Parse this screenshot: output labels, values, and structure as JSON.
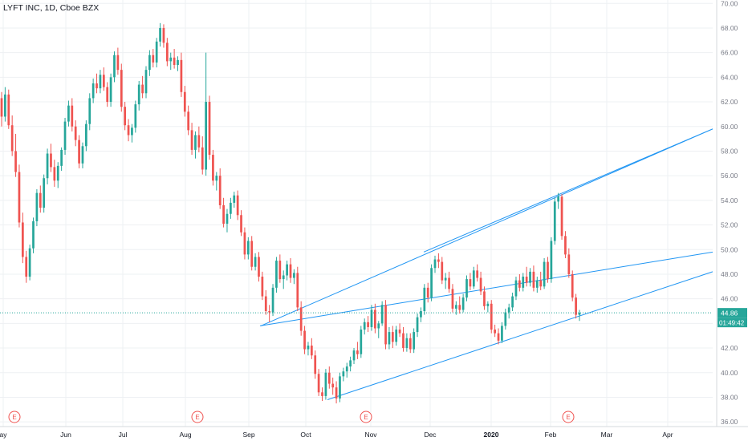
{
  "header": {
    "title": "LYFT INC, 1D, Cboe BZX"
  },
  "price_scale": {
    "last_price": "44.86",
    "countdown": "01:49:42",
    "ticks": [
      "36.00",
      "38.00",
      "40.00",
      "42.00",
      "44.00",
      "46.00",
      "48.00",
      "50.00",
      "52.00",
      "54.00",
      "56.00",
      "58.00",
      "60.00",
      "62.00",
      "64.00",
      "66.00",
      "68.00",
      "70.00"
    ]
  },
  "time_scale": {
    "labels": [
      "ay",
      "Jun",
      "Jul",
      "Aug",
      "Sep",
      "Oct",
      "Nov",
      "Dec",
      "2020",
      "Feb",
      "Mar",
      "Apr"
    ]
  },
  "earnings_markers": [
    "E",
    "E",
    "E",
    "E"
  ],
  "colors": {
    "up": "#26a69a",
    "down": "#ef5350",
    "trendline": "#2196f3",
    "grid": "#eef0f3",
    "price_line": "#26a69a"
  },
  "chart_data": {
    "type": "candlestick",
    "title": "LYFT INC, 1D, Cboe BZX",
    "ylim": [
      35.2,
      70.4
    ],
    "y_axis_side": "right",
    "grid": true,
    "last_price": 44.86,
    "x_labels": [
      "ay",
      "Jun",
      "Jul",
      "Aug",
      "Sep",
      "Oct",
      "Nov",
      "Dec",
      "2020",
      "Feb",
      "Mar",
      "Apr"
    ],
    "candles": [
      [
        62.3,
        62.8,
        60.0,
        60.8
      ],
      [
        60.8,
        63.2,
        60.4,
        62.6
      ],
      [
        62.6,
        63.0,
        59.8,
        60.1
      ],
      [
        60.1,
        60.9,
        57.6,
        58.0
      ],
      [
        58.0,
        59.4,
        55.9,
        56.3
      ],
      [
        56.3,
        56.9,
        51.8,
        52.2
      ],
      [
        52.2,
        53.0,
        48.9,
        49.4
      ],
      [
        49.4,
        49.9,
        47.3,
        47.8
      ],
      [
        47.8,
        50.4,
        47.5,
        50.1
      ],
      [
        50.1,
        52.6,
        49.7,
        52.3
      ],
      [
        52.3,
        54.9,
        51.9,
        54.6
      ],
      [
        54.6,
        55.2,
        53.0,
        53.4
      ],
      [
        53.4,
        56.1,
        53.0,
        55.8
      ],
      [
        55.8,
        58.2,
        55.3,
        57.8
      ],
      [
        57.8,
        58.6,
        56.3,
        56.7
      ],
      [
        56.7,
        57.3,
        55.1,
        55.6
      ],
      [
        55.6,
        57.1,
        55.0,
        56.8
      ],
      [
        56.8,
        58.3,
        56.4,
        58.1
      ],
      [
        58.1,
        60.7,
        57.7,
        60.4
      ],
      [
        60.4,
        62.1,
        60.0,
        61.7
      ],
      [
        61.7,
        62.3,
        59.6,
        60.0
      ],
      [
        60.0,
        60.5,
        58.4,
        58.9
      ],
      [
        58.9,
        59.3,
        56.6,
        57.0
      ],
      [
        57.0,
        58.7,
        56.6,
        58.4
      ],
      [
        58.4,
        60.5,
        58.0,
        60.2
      ],
      [
        60.2,
        62.7,
        59.7,
        62.3
      ],
      [
        62.3,
        63.9,
        61.9,
        63.5
      ],
      [
        63.5,
        64.3,
        62.7,
        63.1
      ],
      [
        63.1,
        64.6,
        62.7,
        64.2
      ],
      [
        64.2,
        64.8,
        62.9,
        63.2
      ],
      [
        63.2,
        63.6,
        61.6,
        62.0
      ],
      [
        62.0,
        64.3,
        61.6,
        64.0
      ],
      [
        64.0,
        66.1,
        63.6,
        65.8
      ],
      [
        65.8,
        66.4,
        64.2,
        64.6
      ],
      [
        64.6,
        65.1,
        61.2,
        61.6
      ],
      [
        61.6,
        62.0,
        59.7,
        60.1
      ],
      [
        60.1,
        60.6,
        58.8,
        59.3
      ],
      [
        59.3,
        60.2,
        58.7,
        59.9
      ],
      [
        59.9,
        62.1,
        59.5,
        61.8
      ],
      [
        61.8,
        63.7,
        61.3,
        63.4
      ],
      [
        63.4,
        64.1,
        62.3,
        62.7
      ],
      [
        62.7,
        64.9,
        62.3,
        64.6
      ],
      [
        64.6,
        66.2,
        64.1,
        65.8
      ],
      [
        65.8,
        66.3,
        64.8,
        65.2
      ],
      [
        65.2,
        67.2,
        64.8,
        66.9
      ],
      [
        66.9,
        68.4,
        66.5,
        68.0
      ],
      [
        68.0,
        68.3,
        66.4,
        66.8
      ],
      [
        66.8,
        67.2,
        64.9,
        65.3
      ],
      [
        65.3,
        66.0,
        64.6,
        65.6
      ],
      [
        65.6,
        66.3,
        64.7,
        65.0
      ],
      [
        65.0,
        65.7,
        64.5,
        65.4
      ],
      [
        65.4,
        66.0,
        62.4,
        62.8
      ],
      [
        62.8,
        63.3,
        60.8,
        61.2
      ],
      [
        61.2,
        61.7,
        59.3,
        59.7
      ],
      [
        59.7,
        60.3,
        57.7,
        58.1
      ],
      [
        58.1,
        59.6,
        57.4,
        59.3
      ],
      [
        59.3,
        60.0,
        57.9,
        58.3
      ],
      [
        58.3,
        59.2,
        56.1,
        56.5
      ],
      [
        56.5,
        66.0,
        56.0,
        62.0
      ],
      [
        62.0,
        62.5,
        57.3,
        57.7
      ],
      [
        57.7,
        58.1,
        55.2,
        55.6
      ],
      [
        55.6,
        56.3,
        54.8,
        56.0
      ],
      [
        56.0,
        56.6,
        53.3,
        53.6
      ],
      [
        53.6,
        54.2,
        51.8,
        52.1
      ],
      [
        52.1,
        53.3,
        51.4,
        52.9
      ],
      [
        52.9,
        54.2,
        52.5,
        53.8
      ],
      [
        53.8,
        54.7,
        53.4,
        54.4
      ],
      [
        54.4,
        54.8,
        52.4,
        52.8
      ],
      [
        52.8,
        53.2,
        51.1,
        51.4
      ],
      [
        51.4,
        51.8,
        49.2,
        49.6
      ],
      [
        49.6,
        51.0,
        49.2,
        50.7
      ],
      [
        50.7,
        51.1,
        48.3,
        48.6
      ],
      [
        48.6,
        49.7,
        48.3,
        49.4
      ],
      [
        49.4,
        49.8,
        47.4,
        47.8
      ],
      [
        47.8,
        48.2,
        45.9,
        46.2
      ],
      [
        46.2,
        46.7,
        44.7,
        45.0
      ],
      [
        45.0,
        45.5,
        44.1,
        44.9
      ],
      [
        44.9,
        47.2,
        44.6,
        46.9
      ],
      [
        46.9,
        49.4,
        46.5,
        49.1
      ],
      [
        49.1,
        49.6,
        47.3,
        47.6
      ],
      [
        47.6,
        48.3,
        46.8,
        47.9
      ],
      [
        47.9,
        49.1,
        47.5,
        48.8
      ],
      [
        48.8,
        49.3,
        47.3,
        47.7
      ],
      [
        47.7,
        48.4,
        47.2,
        48.1
      ],
      [
        48.1,
        48.6,
        45.0,
        45.3
      ],
      [
        45.3,
        45.8,
        43.0,
        43.4
      ],
      [
        43.4,
        43.8,
        41.5,
        41.9
      ],
      [
        41.9,
        42.5,
        41.4,
        42.2
      ],
      [
        42.2,
        42.8,
        41.1,
        41.4
      ],
      [
        41.4,
        41.8,
        39.5,
        39.9
      ],
      [
        39.9,
        40.3,
        38.1,
        38.4
      ],
      [
        38.4,
        38.8,
        37.7,
        38.1
      ],
      [
        38.1,
        40.3,
        37.8,
        40.0
      ],
      [
        40.0,
        40.5,
        38.7,
        39.1
      ],
      [
        39.1,
        39.6,
        38.2,
        38.8
      ],
      [
        38.8,
        39.3,
        37.5,
        37.9
      ],
      [
        37.9,
        40.0,
        37.6,
        39.7
      ],
      [
        39.7,
        40.4,
        39.3,
        40.1
      ],
      [
        40.1,
        40.8,
        39.6,
        40.5
      ],
      [
        40.5,
        41.3,
        40.1,
        41.0
      ],
      [
        41.0,
        42.0,
        40.7,
        41.8
      ],
      [
        41.8,
        42.5,
        41.1,
        41.5
      ],
      [
        41.5,
        43.8,
        41.2,
        43.5
      ],
      [
        43.5,
        44.4,
        43.1,
        44.1
      ],
      [
        44.1,
        44.6,
        43.3,
        43.7
      ],
      [
        43.7,
        45.5,
        43.4,
        45.1
      ],
      [
        45.1,
        45.6,
        43.2,
        43.6
      ],
      [
        43.6,
        44.2,
        42.8,
        44.0
      ],
      [
        44.0,
        45.8,
        43.8,
        45.5
      ],
      [
        45.5,
        45.9,
        41.9,
        42.3
      ],
      [
        42.3,
        43.7,
        41.9,
        43.3
      ],
      [
        43.3,
        43.8,
        42.0,
        42.5
      ],
      [
        42.5,
        43.8,
        42.2,
        43.5
      ],
      [
        43.5,
        44.0,
        42.9,
        43.2
      ],
      [
        43.2,
        43.7,
        41.7,
        42.0
      ],
      [
        42.0,
        43.2,
        41.7,
        42.8
      ],
      [
        42.8,
        43.2,
        41.6,
        41.9
      ],
      [
        41.9,
        43.6,
        41.6,
        43.3
      ],
      [
        43.3,
        44.8,
        42.9,
        44.5
      ],
      [
        44.5,
        45.3,
        44.1,
        45.0
      ],
      [
        45.0,
        47.2,
        44.7,
        46.9
      ],
      [
        46.9,
        47.3,
        45.7,
        46.1
      ],
      [
        46.1,
        48.8,
        45.8,
        48.5
      ],
      [
        48.5,
        49.5,
        48.1,
        49.2
      ],
      [
        49.2,
        49.7,
        48.5,
        49.0
      ],
      [
        49.0,
        49.4,
        47.2,
        47.5
      ],
      [
        47.5,
        48.1,
        46.8,
        47.7
      ],
      [
        47.7,
        48.2,
        46.5,
        46.8
      ],
      [
        46.8,
        47.2,
        44.9,
        45.2
      ],
      [
        45.2,
        45.8,
        44.7,
        45.5
      ],
      [
        45.5,
        46.2,
        44.8,
        45.1
      ],
      [
        45.1,
        46.4,
        44.9,
        46.1
      ],
      [
        46.1,
        47.9,
        45.8,
        47.6
      ],
      [
        47.6,
        48.1,
        46.7,
        47.0
      ],
      [
        47.0,
        48.6,
        46.8,
        48.3
      ],
      [
        48.3,
        48.8,
        47.4,
        47.7
      ],
      [
        47.7,
        48.2,
        46.3,
        46.6
      ],
      [
        46.6,
        47.0,
        45.1,
        45.4
      ],
      [
        45.4,
        45.8,
        44.9,
        45.6
      ],
      [
        45.6,
        45.9,
        43.2,
        43.5
      ],
      [
        43.5,
        43.9,
        42.9,
        43.2
      ],
      [
        43.2,
        43.6,
        42.3,
        42.6
      ],
      [
        42.6,
        44.1,
        42.4,
        43.8
      ],
      [
        43.8,
        45.2,
        43.5,
        44.9
      ],
      [
        44.9,
        45.6,
        44.4,
        45.3
      ],
      [
        45.3,
        46.5,
        45.0,
        46.2
      ],
      [
        46.2,
        47.8,
        45.9,
        47.5
      ],
      [
        47.5,
        48.0,
        46.6,
        46.9
      ],
      [
        46.9,
        48.1,
        46.6,
        47.8
      ],
      [
        47.8,
        48.6,
        47.0,
        47.3
      ],
      [
        47.3,
        48.5,
        47.0,
        48.2
      ],
      [
        48.2,
        48.7,
        46.6,
        46.9
      ],
      [
        46.9,
        47.8,
        46.5,
        47.5
      ],
      [
        47.5,
        48.2,
        46.7,
        47.0
      ],
      [
        47.0,
        49.3,
        46.8,
        49.0
      ],
      [
        49.0,
        49.4,
        47.3,
        47.6
      ],
      [
        47.6,
        51.0,
        47.3,
        50.7
      ],
      [
        50.7,
        54.2,
        50.4,
        53.9
      ],
      [
        53.9,
        54.6,
        53.3,
        54.3
      ],
      [
        54.3,
        54.5,
        50.8,
        51.1
      ],
      [
        51.1,
        51.5,
        49.3,
        49.6
      ],
      [
        49.6,
        50.1,
        47.7,
        48.0
      ],
      [
        48.0,
        48.3,
        45.8,
        46.1
      ],
      [
        46.1,
        46.4,
        44.4,
        44.7
      ],
      [
        44.7,
        45.1,
        44.2,
        44.86
      ]
    ],
    "trendlines": [
      {
        "from": [
          "Sep",
          43.8
        ],
        "to": [
          "Nov",
          49.8
        ]
      },
      {
        "from": [
          "Oct",
          37.8
        ],
        "to": [
          "Apr",
          48.2
        ]
      },
      {
        "from": [
          "Nov",
          49.8
        ],
        "to": [
          "Apr",
          59.8
        ]
      }
    ]
  }
}
